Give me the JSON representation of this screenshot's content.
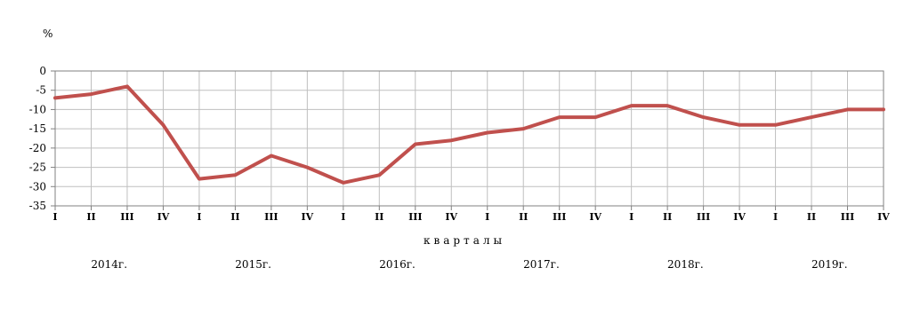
{
  "chart_data": {
    "type": "line",
    "y_unit_label": "%",
    "xlabel": "кварталы",
    "ylim": [
      -35,
      0
    ],
    "y_ticks": [
      0,
      -5,
      -10,
      -15,
      -20,
      -25,
      -30,
      -35
    ],
    "grid": true,
    "categories": [
      "I",
      "II",
      "III",
      "IV",
      "I",
      "II",
      "III",
      "IV",
      "I",
      "II",
      "III",
      "IV",
      "I",
      "II",
      "III",
      "IV",
      "I",
      "II",
      "III",
      "IV",
      "I",
      "II",
      "III",
      "IV"
    ],
    "year_groups": [
      {
        "label": "2014г.",
        "quarters": 4
      },
      {
        "label": "2015г.",
        "quarters": 4
      },
      {
        "label": "2016г.",
        "quarters": 4
      },
      {
        "label": "2017г.",
        "quarters": 4
      },
      {
        "label": "2018г.",
        "quarters": 4
      },
      {
        "label": "2019г.",
        "quarters": 4
      }
    ],
    "series": [
      {
        "color": "#c0504d",
        "values": [
          -7,
          -6,
          -4,
          -14,
          -28,
          -27,
          -22,
          -25,
          -29,
          -27,
          -19,
          -18,
          -16,
          -15,
          -12,
          -12,
          -9,
          -9,
          -12,
          -14,
          -14,
          -12,
          -10,
          -10
        ]
      }
    ]
  }
}
